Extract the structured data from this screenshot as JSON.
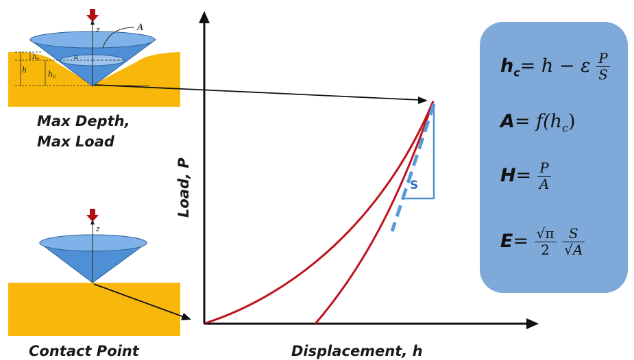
{
  "labels": {
    "max_depth_line1": "Max Depth,",
    "max_depth_line2": "Max Load",
    "contact_point": "Contact Point",
    "x_axis": "Displacement, h",
    "y_axis": "Load, P",
    "stiffness": "S"
  },
  "indenter_top": {
    "area": "A",
    "z": "z",
    "a": "a",
    "h": "h",
    "hs": "h",
    "hs_sub": "s",
    "hc": "h",
    "hc_sub": "c"
  },
  "indenter_bottom": {
    "z": "z"
  },
  "formulas": {
    "hc": {
      "lhs": "h",
      "lhs_sub": "c",
      "rhs": "= h − ε",
      "num": "P",
      "den": "S"
    },
    "area": {
      "lhs": "A",
      "rhs": "= f(h",
      "rhs_sub": "c",
      "rhs_end": ")"
    },
    "hardness": {
      "lhs": "H",
      "rhs": "=",
      "num": "P",
      "den": "A"
    },
    "modulus": {
      "lhs": "E",
      "rhs": "=",
      "num1": "√π",
      "den1": "2",
      "num2": "S",
      "den2": "√A"
    }
  },
  "colors": {
    "sample": "#f7b80b",
    "indenter": "#4f8fd6",
    "curve": "#c0121c",
    "arrow": "#b01010",
    "formula_box": "#7fa9d8",
    "tangent": "#5a9ad8"
  }
}
